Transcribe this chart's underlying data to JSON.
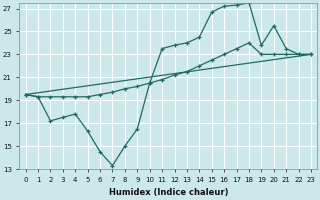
{
  "xlabel": "Humidex (Indice chaleur)",
  "bg_color": "#cde8eb",
  "grid_color": "#ffffff",
  "line_color": "#1e6b5e",
  "xlim": [
    -0.5,
    23.5
  ],
  "ylim": [
    13,
    27.5
  ],
  "xticks": [
    0,
    1,
    2,
    3,
    4,
    5,
    6,
    7,
    8,
    9,
    10,
    11,
    12,
    13,
    14,
    15,
    16,
    17,
    18,
    19,
    20,
    21,
    22,
    23
  ],
  "yticks": [
    13,
    15,
    17,
    19,
    21,
    23,
    25,
    27
  ],
  "line1_x": [
    0,
    1,
    2,
    3,
    4,
    5,
    6,
    7,
    8,
    9,
    10,
    11,
    12,
    13,
    14,
    15,
    16,
    17,
    18,
    19,
    20,
    21,
    22,
    23
  ],
  "line1_y": [
    19.5,
    19.3,
    19.3,
    19.3,
    19.3,
    19.3,
    19.5,
    19.7,
    20.0,
    20.2,
    20.5,
    20.8,
    21.2,
    21.5,
    22.0,
    22.5,
    23.0,
    23.5,
    24.0,
    23.0,
    23.0,
    23.0,
    23.0,
    23.0
  ],
  "line2_x": [
    0,
    1,
    2,
    3,
    4,
    5,
    6,
    7,
    8,
    9,
    10,
    11,
    12,
    13,
    14,
    15,
    16,
    17,
    18,
    19,
    20,
    21,
    22,
    23
  ],
  "line2_y": [
    19.5,
    19.3,
    17.2,
    17.5,
    17.8,
    16.3,
    14.5,
    13.3,
    15.0,
    16.5,
    20.5,
    23.5,
    23.8,
    24.0,
    24.5,
    26.7,
    27.2,
    27.3,
    27.5,
    23.8,
    25.5,
    23.5,
    23.0,
    23.0
  ],
  "line3_x": [
    0,
    23
  ],
  "line3_y": [
    19.5,
    23.0
  ]
}
